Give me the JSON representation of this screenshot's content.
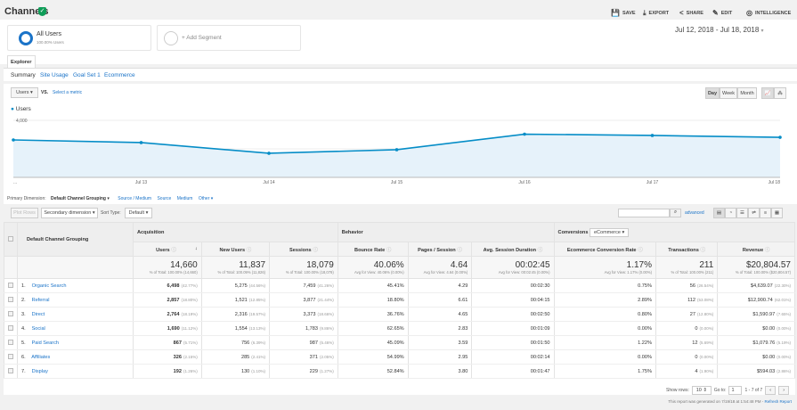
{
  "header": {
    "title": "Channels",
    "actions": [
      {
        "icon": "save-icon",
        "glyph": "💾",
        "label": "SAVE"
      },
      {
        "icon": "export-icon",
        "glyph": "⤓",
        "label": "EXPORT"
      },
      {
        "icon": "share-icon",
        "glyph": "<",
        "label": "SHARE"
      },
      {
        "icon": "edit-icon",
        "glyph": "✎",
        "label": "EDIT"
      },
      {
        "icon": "intelligence-icon",
        "glyph": "◎",
        "label": "INTELLIGENCE"
      }
    ]
  },
  "segments": {
    "active": "All Users",
    "active_sub": "100.00% Users",
    "add": "+ Add Segment",
    "active_color": "#1a73c8"
  },
  "date_range": "Jul 12, 2018 - Jul 18, 2018",
  "tabs": {
    "explorer": "Explorer",
    "subtabs": [
      "Summary",
      "Site Usage",
      "Goal Set 1",
      "Ecommerce"
    ]
  },
  "chart_controls": {
    "metric": "Users",
    "vs": "VS.",
    "select_metric": "Select a metric",
    "periods": [
      "Day",
      "Week",
      "Month"
    ],
    "active_period": "Day"
  },
  "chart_data": {
    "type": "area",
    "series": [
      {
        "name": "Users",
        "values": [
          2625,
          2440,
          1690,
          1940,
          3030,
          2940,
          2810
        ]
      }
    ],
    "x": [
      "Jul 12",
      "Jul 13",
      "Jul 14",
      "Jul 15",
      "Jul 16",
      "Jul 17",
      "Jul 18"
    ],
    "x_tick_labels": [
      "...",
      "Jul 13",
      "Jul 14",
      "Jul 15",
      "Jul 16",
      "Jul 17",
      "Jul 18"
    ],
    "y_ticks": [
      "4,000",
      "2,000"
    ],
    "y_tick_values": [
      4000,
      2000
    ],
    "color": "#058dc7",
    "fill": "#e6f2fa",
    "legend": "top-left",
    "grid": true
  },
  "dimensions": {
    "label": "Primary Dimension:",
    "active": "Default Channel Grouping",
    "others": [
      "Source / Medium",
      "Source",
      "Medium",
      "Other"
    ]
  },
  "table_controls": {
    "plot_rows": "Plot Rows",
    "secondary": "Secondary dimension",
    "sort_label": "Sort Type:",
    "sort_value": "Default",
    "advanced": "advanced"
  },
  "table": {
    "dim_header": "Default Channel Grouping",
    "groups": [
      "Acquisition",
      "Behavior",
      "Conversions"
    ],
    "conversion_select": "eCommerce",
    "columns": [
      "Users",
      "New Users",
      "Sessions",
      "Bounce Rate",
      "Pages / Session",
      "Avg. Session Duration",
      "Ecommerce Conversion Rate",
      "Transactions",
      "Revenue"
    ],
    "totals": [
      {
        "value": "14,660",
        "sub": "% of Total: 100.00% (14,660)"
      },
      {
        "value": "11,837",
        "sub": "% of Total: 100.09% (11,826)"
      },
      {
        "value": "18,079",
        "sub": "% of Total: 100.00% (18,079)"
      },
      {
        "value": "40.06%",
        "sub": "Avg for View: 40.06% (0.00%)"
      },
      {
        "value": "4.64",
        "sub": "Avg for View: 4.64 (0.00%)"
      },
      {
        "value": "00:02:45",
        "sub": "Avg for View: 00:02:45 (0.00%)"
      },
      {
        "value": "1.17%",
        "sub": "Avg for View: 1.17% (0.00%)"
      },
      {
        "value": "211",
        "sub": "% of Total: 100.00% (211)"
      },
      {
        "value": "$20,804.57",
        "sub": "% of Total: 100.00% ($20,804.57)"
      }
    ],
    "rows": [
      {
        "n": "1.",
        "name": "Organic Search",
        "users": "6,498",
        "users_pct": "(42.77%)",
        "new": "5,275",
        "new_pct": "(44.56%)",
        "sess": "7,459",
        "sess_pct": "(41.26%)",
        "bounce": "45.41%",
        "pps": "4.29",
        "dur": "00:02:30",
        "conv": "0.75%",
        "tx": "56",
        "tx_pct": "(26.54%)",
        "rev": "$4,639.07",
        "rev_pct": "(22.30%)"
      },
      {
        "n": "2.",
        "name": "Referral",
        "users": "2,857",
        "users_pct": "(18.80%)",
        "new": "1,521",
        "new_pct": "(12.85%)",
        "sess": "3,877",
        "sess_pct": "(21.44%)",
        "bounce": "18.80%",
        "pps": "6.61",
        "dur": "00:04:15",
        "conv": "2.89%",
        "tx": "112",
        "tx_pct": "(53.08%)",
        "rev": "$12,900.74",
        "rev_pct": "(62.01%)"
      },
      {
        "n": "3.",
        "name": "Direct",
        "users": "2,764",
        "users_pct": "(18.19%)",
        "new": "2,316",
        "new_pct": "(19.57%)",
        "sess": "3,373",
        "sess_pct": "(18.66%)",
        "bounce": "36.76%",
        "pps": "4.65",
        "dur": "00:02:50",
        "conv": "0.80%",
        "tx": "27",
        "tx_pct": "(12.80%)",
        "rev": "$1,590.97",
        "rev_pct": "(7.65%)"
      },
      {
        "n": "4.",
        "name": "Social",
        "users": "1,690",
        "users_pct": "(11.12%)",
        "new": "1,554",
        "new_pct": "(13.13%)",
        "sess": "1,783",
        "sess_pct": "(9.86%)",
        "bounce": "62.65%",
        "pps": "2.83",
        "dur": "00:01:09",
        "conv": "0.00%",
        "tx": "0",
        "tx_pct": "(0.00%)",
        "rev": "$0.00",
        "rev_pct": "(0.00%)"
      },
      {
        "n": "5.",
        "name": "Paid Search",
        "users": "867",
        "users_pct": "(5.71%)",
        "new": "756",
        "new_pct": "(6.39%)",
        "sess": "987",
        "sess_pct": "(5.46%)",
        "bounce": "45.09%",
        "pps": "3.59",
        "dur": "00:01:50",
        "conv": "1.22%",
        "tx": "12",
        "tx_pct": "(5.69%)",
        "rev": "$1,079.76",
        "rev_pct": "(5.19%)"
      },
      {
        "n": "6.",
        "name": "Affiliates",
        "users": "326",
        "users_pct": "(2.15%)",
        "new": "285",
        "new_pct": "(2.41%)",
        "sess": "371",
        "sess_pct": "(2.05%)",
        "bounce": "54.99%",
        "pps": "2.95",
        "dur": "00:02:14",
        "conv": "0.00%",
        "tx": "0",
        "tx_pct": "(0.00%)",
        "rev": "$0.00",
        "rev_pct": "(0.00%)"
      },
      {
        "n": "7.",
        "name": "Display",
        "users": "192",
        "users_pct": "(1.26%)",
        "new": "130",
        "new_pct": "(1.10%)",
        "sess": "229",
        "sess_pct": "(1.27%)",
        "bounce": "52.84%",
        "pps": "3.80",
        "dur": "00:01:47",
        "conv": "1.75%",
        "tx": "4",
        "tx_pct": "(1.90%)",
        "rev": "$594.03",
        "rev_pct": "(2.86%)"
      }
    ]
  },
  "pagination": {
    "show_rows": "Show rows:",
    "rows_value": "10",
    "goto": "Go to:",
    "goto_value": "1",
    "range": "1 - 7 of 7"
  },
  "report_note": "This report was generated on 7/19/18 at 1:54:48 PM - ",
  "refresh": "Refresh Report"
}
